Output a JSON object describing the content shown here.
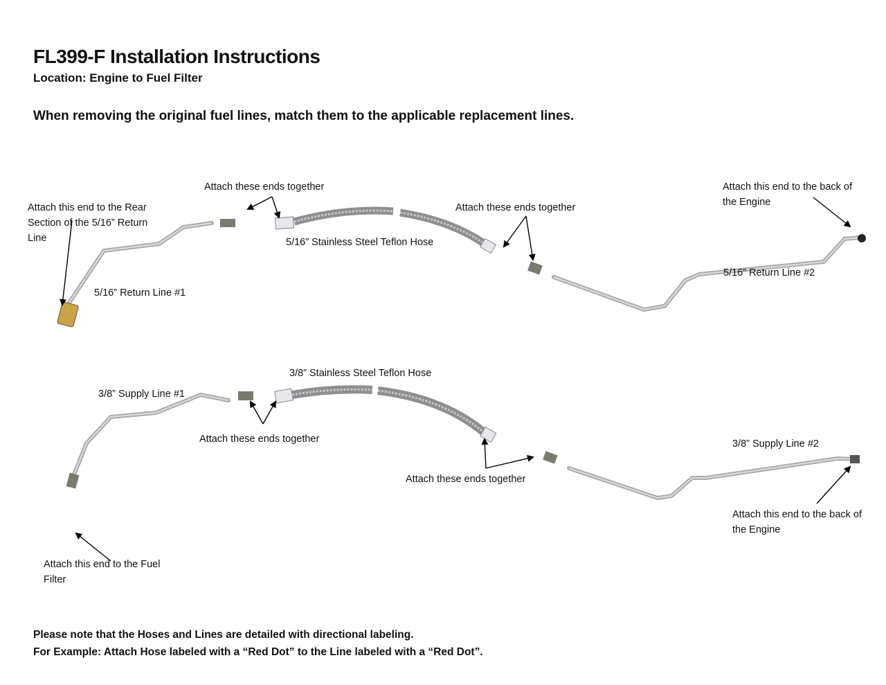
{
  "header": {
    "title": "FL399-F Installation Instructions",
    "location": "Location: Engine to Fuel Filter",
    "instruction": "When removing the original fuel lines, match them to the applicable replacement lines."
  },
  "top_row": {
    "rear_section_label": [
      "Attach this end to the Rear",
      "Section of the 5/16” Return",
      "Line"
    ],
    "return_line_1": "5/16” Return Line #1",
    "attach_together_1": "Attach these ends together",
    "hose_label": "5/16” Stainless Steel Teflon Hose",
    "attach_together_2": "Attach these ends together",
    "engine_label": [
      "Attach this end to the back of",
      "the Engine"
    ],
    "return_line_2": "5/16” Return Line #2"
  },
  "bottom_row": {
    "supply_line_1": "3/8” Supply Line #1",
    "hose_label": "3/8” Stainless Steel Teflon Hose",
    "attach_together_1": "Attach these ends together",
    "attach_together_2": "Attach these ends together",
    "supply_line_2": "3/8” Supply Line #2",
    "engine_label": [
      "Attach this end to the back of",
      "the Engine"
    ],
    "fuel_filter_label": [
      "Attach this end to the Fuel",
      "Filter"
    ]
  },
  "footer": {
    "note": "Please note that the Hoses and Lines are detailed with directional labeling.",
    "example": "For Example: Attach Hose labeled with a “Red Dot” to the Line labeled with a “Red Dot”."
  },
  "colors": {
    "line": "#b4b6b8",
    "hose": "#8e8f90",
    "fitting": "#7a7a6e",
    "brass": "#c9a24a"
  }
}
